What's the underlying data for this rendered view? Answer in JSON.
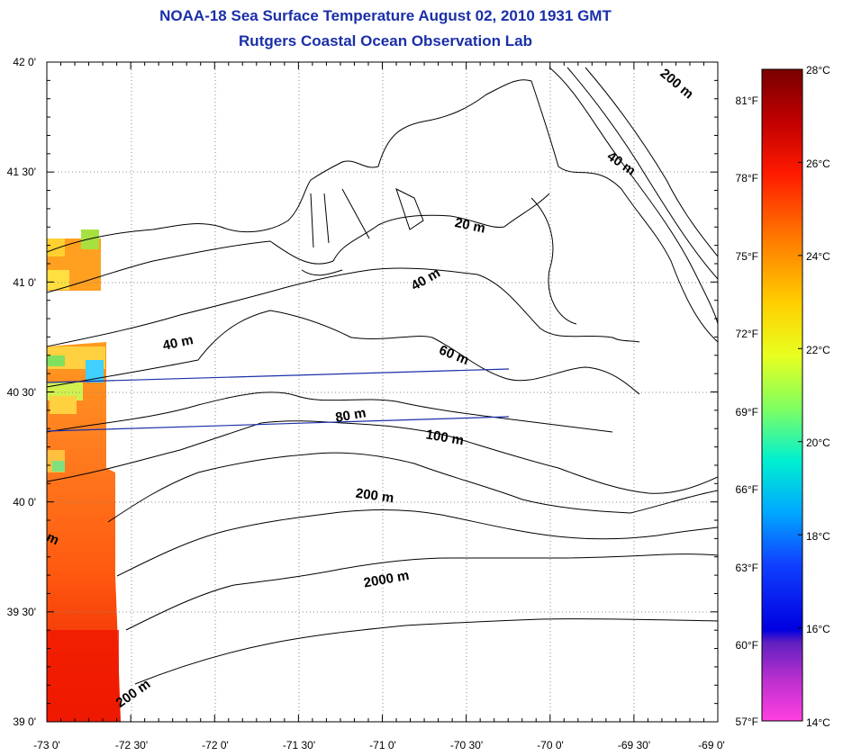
{
  "title": "NOAA-18 Sea Surface Temperature August 02, 2010 1931 GMT",
  "subtitle": "Rutgers Coastal Ocean Observation Lab",
  "map": {
    "lon_range": [
      -73.0,
      -69.0
    ],
    "lat_range": [
      39.0,
      42.0
    ],
    "lon_ticks": [
      "-73 0'",
      "-72 30'",
      "-72 0'",
      "-71 30'",
      "-71 0'",
      "-70 30'",
      "-70 0'",
      "-69 30'",
      "-69 0'"
    ],
    "lat_ticks": [
      "39 0'",
      "39 30'",
      "40 0'",
      "40 30'",
      "41 0'",
      "41 30'",
      "42 0'"
    ],
    "grid": true,
    "contour_labels": [
      "200 m",
      "40 m",
      "20 m",
      "40 m",
      "40 m",
      "60 m",
      "80 m",
      "100 m",
      "200 m",
      "2000 m",
      "200 m",
      "m"
    ]
  },
  "colorbar": {
    "celsius": [
      "28°C",
      "26°C",
      "24°C",
      "22°C",
      "20°C",
      "18°C",
      "16°C",
      "14°C"
    ],
    "fahrenheit": [
      "81°F",
      "78°F",
      "75°F",
      "72°F",
      "69°F",
      "66°F",
      "63°F",
      "60°F",
      "57°F"
    ],
    "range_c": [
      14,
      28
    ]
  }
}
